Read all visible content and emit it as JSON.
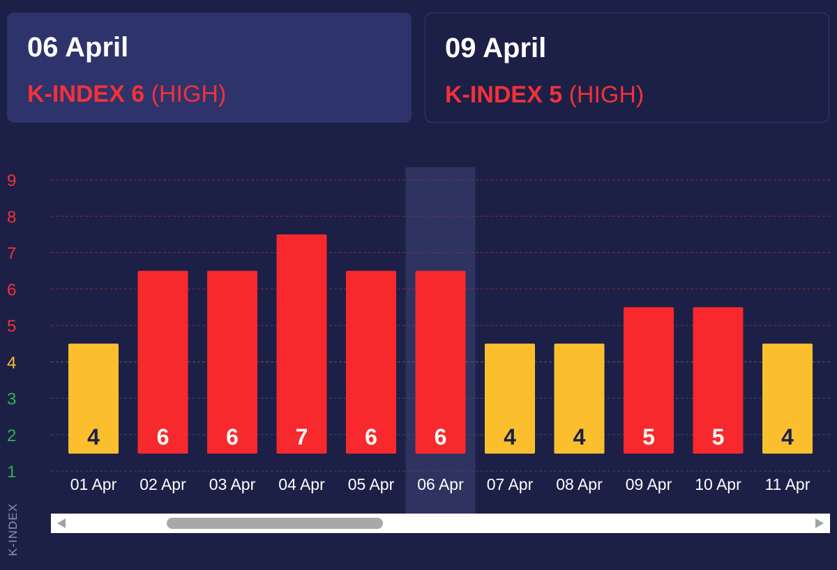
{
  "cards": [
    {
      "date": "06 April",
      "kindex_label": "K-INDEX 6",
      "level": "(HIGH)",
      "selected": true
    },
    {
      "date": "09 April",
      "kindex_label": "K-INDEX 5",
      "level": "(HIGH)",
      "selected": false
    }
  ],
  "chart_data": {
    "type": "bar",
    "categories": [
      "01 Apr",
      "02 Apr",
      "03 Apr",
      "04 Apr",
      "05 Apr",
      "06 Apr",
      "07 Apr",
      "08 Apr",
      "09 Apr",
      "10 Apr",
      "11 Apr"
    ],
    "values": [
      4,
      6,
      6,
      7,
      6,
      6,
      4,
      4,
      5,
      5,
      4
    ],
    "ylabel": "K-INDEX",
    "xlabel": "",
    "title": "",
    "ylim": [
      1,
      9
    ],
    "yticks": [
      "1",
      "2",
      "3",
      "4",
      "5",
      "6",
      "7",
      "8",
      "9"
    ],
    "highlighted_category": "06 Apr",
    "grid": true,
    "colors": {
      "high": "#f8292c",
      "moderate": "#fbbf2d",
      "high_tick": "#f2313a",
      "moderate_tick": "#fbbf2d",
      "low_tick": "#2fb54a",
      "label_on_high": "#ffffff",
      "label_on_moderate": "#1c2047"
    }
  },
  "scrollbar": {
    "left_icon": "scroll-left-arrow-icon",
    "right_icon": "scroll-right-arrow-icon"
  }
}
